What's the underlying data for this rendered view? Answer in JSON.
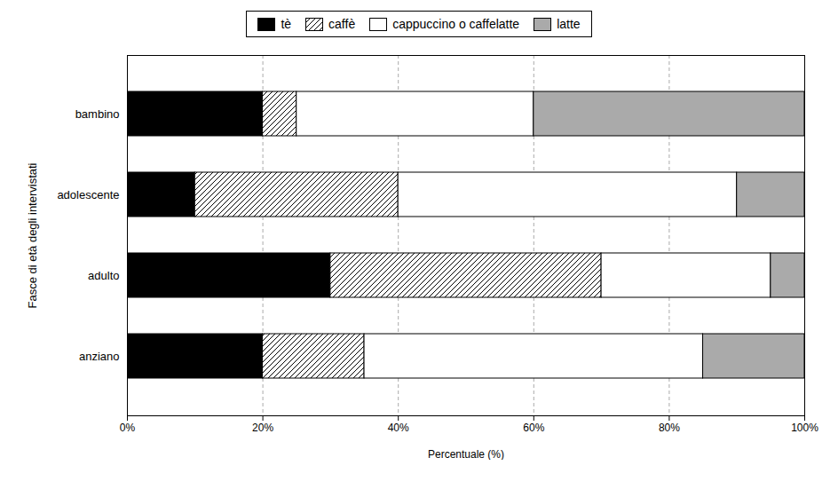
{
  "chart_data": {
    "type": "bar",
    "orientation": "horizontal",
    "stacked": true,
    "xlabel": "Percentuale (%)",
    "ylabel": "Fasce di età degli intervistati",
    "categories": [
      "bambino",
      "adolescente",
      "adulto",
      "anziano"
    ],
    "series": [
      {
        "name": "tè",
        "color": "#000000",
        "values": [
          20,
          10,
          30,
          20
        ]
      },
      {
        "name": "caffè",
        "color": "#ffffff",
        "values": [
          5,
          30,
          40,
          15
        ]
      },
      {
        "name": "cappuccino o caffelatte",
        "color": "#ffffff",
        "values": [
          35,
          50,
          25,
          50
        ]
      },
      {
        "name": "latte",
        "color": "#aaaaaa",
        "values": [
          40,
          10,
          5,
          15
        ]
      }
    ],
    "xlim": [
      0,
      100
    ],
    "xticks": [
      {
        "value": 0,
        "label": "0%"
      },
      {
        "value": 20,
        "label": "20%"
      },
      {
        "value": 40,
        "label": "40%"
      },
      {
        "value": 60,
        "label": "60%"
      },
      {
        "value": 80,
        "label": "80%"
      },
      {
        "value": 100,
        "label": "100%"
      }
    ],
    "grid": true,
    "legend": "top"
  }
}
